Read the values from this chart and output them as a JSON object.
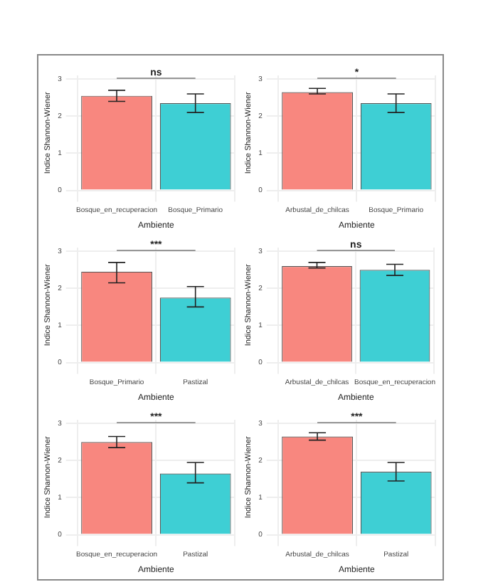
{
  "chart_data": [
    {
      "type": "bar",
      "categories": [
        "Bosque_en_recuperacion",
        "Bosque_Primario"
      ],
      "values": [
        2.55,
        2.35
      ],
      "errors": [
        [
          2.4,
          2.7
        ],
        [
          2.1,
          2.6
        ]
      ],
      "colors": [
        "#f8877f",
        "#3ecfd4"
      ],
      "xlabel": "Ambiente",
      "ylabel": "Indice Shannon-Wiener",
      "ylim": [
        0,
        3.1
      ],
      "yticks": [
        0,
        1,
        2,
        3
      ],
      "grid": true,
      "annotations": [
        "ns"
      ]
    },
    {
      "type": "bar",
      "categories": [
        "Arbustal_de_chilcas",
        "Bosque_Primario"
      ],
      "values": [
        2.65,
        2.35
      ],
      "errors": [
        [
          2.6,
          2.75
        ],
        [
          2.1,
          2.6
        ]
      ],
      "colors": [
        "#f8877f",
        "#3ecfd4"
      ],
      "xlabel": "Ambiente",
      "ylabel": "Indice Shannon-Wiener",
      "ylim": [
        0,
        3.1
      ],
      "yticks": [
        0,
        1,
        2,
        3
      ],
      "grid": true,
      "annotations": [
        "*"
      ]
    },
    {
      "type": "bar",
      "categories": [
        "Bosque_Primario",
        "Pastizal"
      ],
      "values": [
        2.45,
        1.75
      ],
      "errors": [
        [
          2.15,
          2.7
        ],
        [
          1.5,
          2.05
        ]
      ],
      "colors": [
        "#f8877f",
        "#3ecfd4"
      ],
      "xlabel": "Ambiente",
      "ylabel": "Indice Shannon-Wiener",
      "ylim": [
        0,
        3.1
      ],
      "yticks": [
        0,
        1,
        2,
        3
      ],
      "grid": true,
      "annotations": [
        "***"
      ]
    },
    {
      "type": "bar",
      "categories": [
        "Arbustal_de_chilcas",
        "Bosque_en_recuperacion"
      ],
      "values": [
        2.6,
        2.5
      ],
      "errors": [
        [
          2.55,
          2.7
        ],
        [
          2.35,
          2.65
        ]
      ],
      "colors": [
        "#f8877f",
        "#3ecfd4"
      ],
      "xlabel": "Ambiente",
      "ylabel": "Indice Shannon-Wiener",
      "ylim": [
        0,
        3.1
      ],
      "yticks": [
        0,
        1,
        2,
        3
      ],
      "grid": true,
      "annotations": [
        "ns"
      ]
    },
    {
      "type": "bar",
      "categories": [
        "Bosque_en_recuperacion",
        "Pastizal"
      ],
      "values": [
        2.5,
        1.65
      ],
      "errors": [
        [
          2.35,
          2.65
        ],
        [
          1.4,
          1.95
        ]
      ],
      "colors": [
        "#f8877f",
        "#3ecfd4"
      ],
      "xlabel": "Ambiente",
      "ylabel": "Indice Shannon-Wiener",
      "ylim": [
        0,
        3.1
      ],
      "yticks": [
        0,
        1,
        2,
        3
      ],
      "grid": true,
      "annotations": [
        "***"
      ]
    },
    {
      "type": "bar",
      "categories": [
        "Arbustal_de_chilcas",
        "Pastizal"
      ],
      "values": [
        2.65,
        1.7
      ],
      "errors": [
        [
          2.55,
          2.75
        ],
        [
          1.45,
          1.95
        ]
      ],
      "colors": [
        "#f8877f",
        "#3ecfd4"
      ],
      "xlabel": "Ambiente",
      "ylabel": "Indice Shannon-Wiener",
      "ylim": [
        0,
        3.1
      ],
      "yticks": [
        0,
        1,
        2,
        3
      ],
      "grid": true,
      "annotations": [
        "***"
      ]
    }
  ]
}
